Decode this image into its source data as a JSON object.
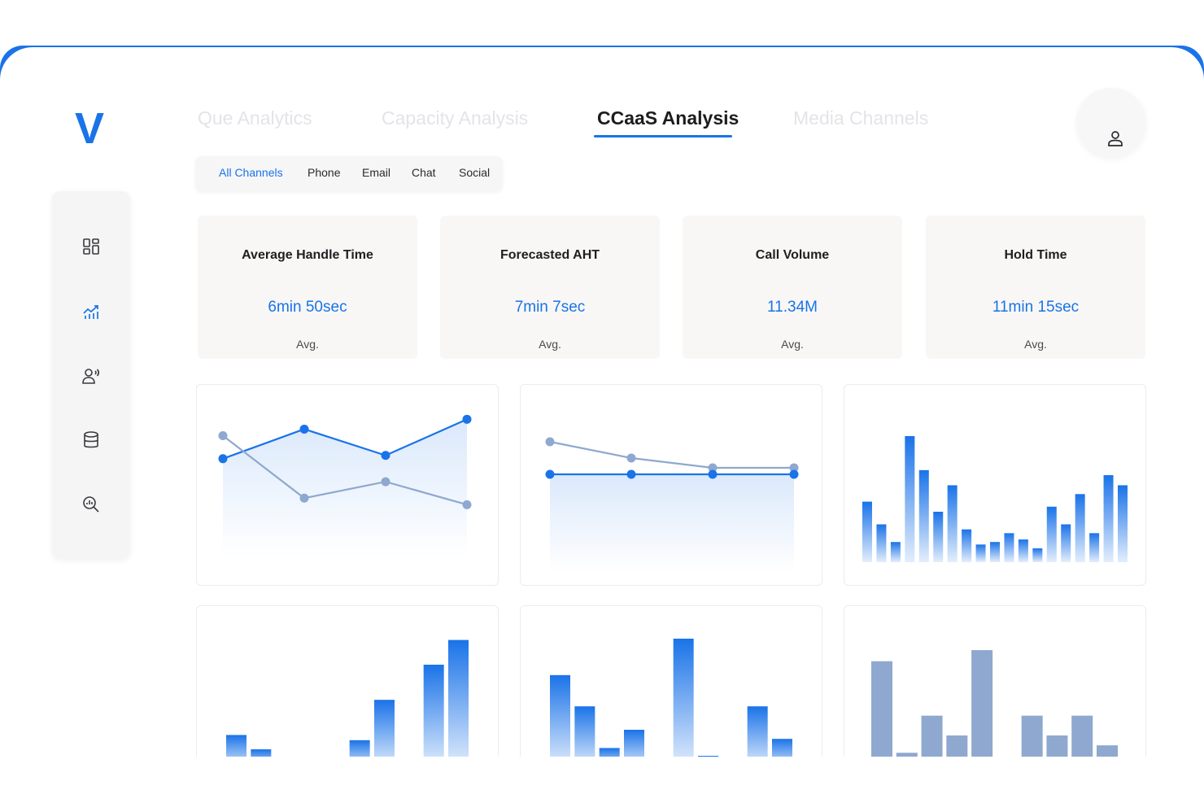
{
  "brand": {
    "logo_letter": "V",
    "accent": "#1a73e8",
    "muted_series": "#8fa8cf"
  },
  "sidebar": {
    "items": [
      {
        "icon": "dashboard-grid-icon"
      },
      {
        "icon": "analytics-chart-icon",
        "active": true
      },
      {
        "icon": "voice-agent-icon"
      },
      {
        "icon": "database-icon"
      },
      {
        "icon": "search-analytics-icon"
      }
    ]
  },
  "tabs": [
    {
      "label": "Que Analytics"
    },
    {
      "label": "Capacity Analysis"
    },
    {
      "label": "CCaaS Analysis",
      "active": true
    },
    {
      "label": "Media Channels"
    }
  ],
  "filters": [
    {
      "label": "All Channels",
      "selected": true
    },
    {
      "label": "Phone"
    },
    {
      "label": "Email"
    },
    {
      "label": "Chat"
    },
    {
      "label": "Social"
    }
  ],
  "kpis": [
    {
      "title": "Average Handle Time",
      "value": "6min 50sec",
      "sub": "Avg."
    },
    {
      "title": "Forecasted AHT",
      "value": "7min 7sec",
      "sub": "Avg."
    },
    {
      "title": "Call Volume",
      "value": "11.34M",
      "sub": "Avg."
    },
    {
      "title": "Hold Time",
      "value": "11min 15sec",
      "sub": "Avg."
    }
  ],
  "chart_data": [
    {
      "type": "line",
      "x": [
        1,
        2,
        3,
        4
      ],
      "ylim": [
        0,
        100
      ],
      "series": [
        {
          "values": [
            60,
            78,
            62,
            84
          ],
          "color": "#1a73e8",
          "area": true
        },
        {
          "values": [
            74,
            36,
            46,
            32
          ],
          "color": "#8fa8cf"
        }
      ]
    },
    {
      "type": "line",
      "x": [
        1,
        2,
        3,
        4
      ],
      "ylim": [
        0,
        100
      ],
      "series": [
        {
          "values": [
            80,
            70,
            64,
            64
          ],
          "color": "#8fa8cf"
        },
        {
          "values": [
            60,
            60,
            60,
            60
          ],
          "color": "#1a73e8",
          "area": true
        }
      ]
    },
    {
      "type": "bar",
      "ylim": [
        0,
        100
      ],
      "color": "#1a73e8",
      "values": [
        48,
        30,
        16,
        100,
        73,
        40,
        61,
        26,
        14,
        16,
        23,
        18,
        11,
        44,
        30,
        54,
        23,
        69,
        61
      ]
    },
    {
      "type": "bar",
      "ylim": [
        0,
        100
      ],
      "color": "#1a73e8",
      "values": [
        26,
        15,
        0,
        4,
        0,
        22,
        53,
        0,
        80,
        99
      ]
    },
    {
      "type": "bar",
      "ylim": [
        0,
        100
      ],
      "color": "#1a73e8",
      "values": [
        72,
        48,
        16,
        30,
        0,
        100,
        10,
        0,
        48,
        23
      ]
    },
    {
      "type": "bar",
      "ylim": [
        0,
        100
      ],
      "color": "#8fa8cf",
      "values": [
        87,
        13,
        43,
        27,
        96,
        7,
        43,
        27,
        43,
        19
      ]
    }
  ]
}
